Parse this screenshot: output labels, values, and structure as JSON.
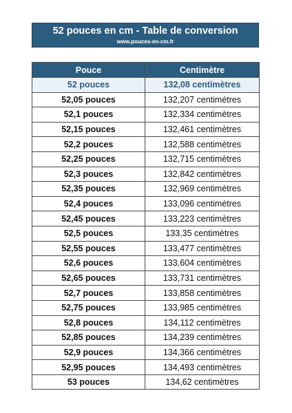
{
  "header": {
    "title": "52 pouces en cm - Table de conversion",
    "website": "www.pouces-en-cm.fr"
  },
  "table": {
    "columns": [
      "Pouce",
      "Centimètre"
    ],
    "highlight": {
      "inches": "52 pouces",
      "cm": "132,08 centimètres"
    },
    "rows": [
      {
        "inches": "52,05 pouces",
        "cm": "132,207 centimètres"
      },
      {
        "inches": "52,1 pouces",
        "cm": "132,334 centimètres"
      },
      {
        "inches": "52,15 pouces",
        "cm": "132,461 centimètres"
      },
      {
        "inches": "52,2 pouces",
        "cm": "132,588 centimètres"
      },
      {
        "inches": "52,25 pouces",
        "cm": "132,715 centimètres"
      },
      {
        "inches": "52,3 pouces",
        "cm": "132,842 centimètres"
      },
      {
        "inches": "52,35 pouces",
        "cm": "132,969 centimètres"
      },
      {
        "inches": "52,4 pouces",
        "cm": "133,096 centimètres"
      },
      {
        "inches": "52,45 pouces",
        "cm": "133,223 centimètres"
      },
      {
        "inches": "52,5 pouces",
        "cm": "133,35 centimètres"
      },
      {
        "inches": "52,55 pouces",
        "cm": "133,477 centimètres"
      },
      {
        "inches": "52,6 pouces",
        "cm": "133,604 centimètres"
      },
      {
        "inches": "52,65 pouces",
        "cm": "133,731 centimètres"
      },
      {
        "inches": "52,7 pouces",
        "cm": "133,858 centimètres"
      },
      {
        "inches": "52,75 pouces",
        "cm": "133,985 centimètres"
      },
      {
        "inches": "52,8 pouces",
        "cm": "134,112 centimètres"
      },
      {
        "inches": "52,85 pouces",
        "cm": "134,239 centimètres"
      },
      {
        "inches": "52,9 pouces",
        "cm": "134,366 centimètres"
      },
      {
        "inches": "52,95 pouces",
        "cm": "134,493 centimètres"
      },
      {
        "inches": "53 pouces",
        "cm": "134,62 centimètres"
      }
    ]
  },
  "colors": {
    "header_bg": "#2b5d80",
    "header_text": "#ffffff",
    "highlight_text": "#2b5d80"
  }
}
